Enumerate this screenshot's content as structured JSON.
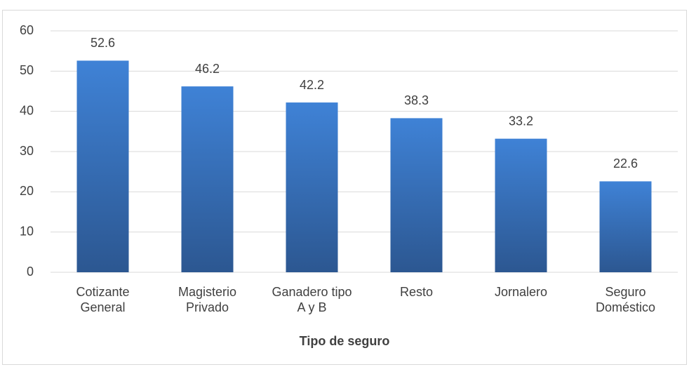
{
  "chart_data": {
    "type": "bar",
    "x_label": "Tipo de seguro",
    "categories": [
      "Cotizante General",
      "Magisterio Privado",
      "Ganadero tipo A y B",
      "Resto",
      "Jornalero",
      "Seguro Doméstico"
    ],
    "values": [
      52.6,
      46.2,
      42.2,
      38.3,
      33.2,
      22.6
    ],
    "color": "#3a75c4",
    "ylim": [
      0,
      60
    ],
    "yticks": [
      0,
      10,
      20,
      30,
      40,
      50,
      60
    ],
    "grid": true
  }
}
